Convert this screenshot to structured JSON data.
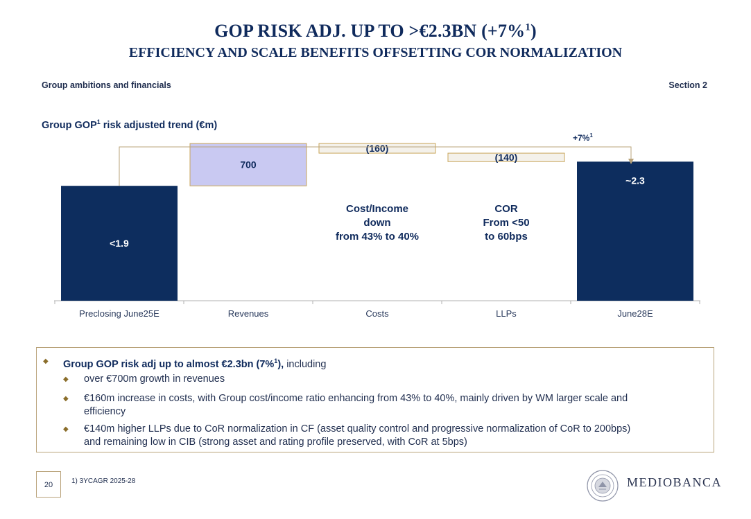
{
  "header": {
    "title_main": "GOP RISK ADJ. UP TO >€2.3BN (+7%",
    "title_sup": "1",
    "title_close": ")",
    "subtitle": "EFFICIENCY AND SCALE BENEFITS OFFSETTING COR NORMALIZATION",
    "breadcrumb_left": "Group ambitions and financials",
    "breadcrumb_right": "Section 2"
  },
  "chart_data": {
    "type": "bar",
    "subtype": "waterfall",
    "title_pre": "Group GOP",
    "title_sup": "1",
    "title_post": " risk adjusted trend (€m)",
    "categories": [
      "Preclosing June25E",
      "Revenues",
      "Costs",
      "LLPs",
      "June28E"
    ],
    "bars": [
      {
        "category": "Preclosing June25E",
        "kind": "total",
        "start": 0,
        "end": 1.9,
        "label": "<1.9"
      },
      {
        "category": "Revenues",
        "kind": "increase",
        "start": 1.9,
        "end": 2.6,
        "label": "700"
      },
      {
        "category": "Costs",
        "kind": "decrease",
        "start": 2.6,
        "end": 2.44,
        "label": "(160)"
      },
      {
        "category": "LLPs",
        "kind": "decrease",
        "start": 2.44,
        "end": 2.3,
        "label": "(140)"
      },
      {
        "category": "June28E",
        "kind": "total",
        "start": 0,
        "end": 2.3,
        "label": "~2.3"
      }
    ],
    "ylim": [
      0,
      2.75
    ],
    "grid": false,
    "annotations": [
      {
        "category": "Costs",
        "lines": [
          "Cost/Income",
          "down",
          "from 43% to 40%"
        ]
      },
      {
        "category": "LLPs",
        "lines": [
          "COR",
          "From <50",
          "to 60bps"
        ]
      }
    ],
    "arrow_label": "+7%",
    "arrow_label_sup": "1",
    "colors": {
      "total": "#0d2d5e",
      "increase": "#c9c9f2",
      "increase_border": "#c9a55a",
      "decrease": "#f4f1ea",
      "decrease_border": "#c9a55a",
      "arrow": "#b9a37a"
    }
  },
  "summary": {
    "headline_bold": "Group GOP risk adj up to almost €2.3bn (7%",
    "headline_sup": "1",
    "headline_bold_end": "),",
    "headline_rest": " including",
    "bullets": [
      "over €700m growth in revenues",
      "€160m increase in costs, with Group cost/income ratio enhancing from 43% to 40%, mainly driven by WM larger scale and",
      "efficiency",
      "€140m higher LLPs due to CoR normalization in CF (asset quality control and progressive normalization of CoR to 200bps)",
      "and  remaining low in CIB (strong asset and rating profile preserved, with CoR at 5bps)"
    ]
  },
  "footer": {
    "page_number": "20",
    "footnote": "1)    3YCAGR 2025-28",
    "logo": "MEDIOBANCA"
  }
}
